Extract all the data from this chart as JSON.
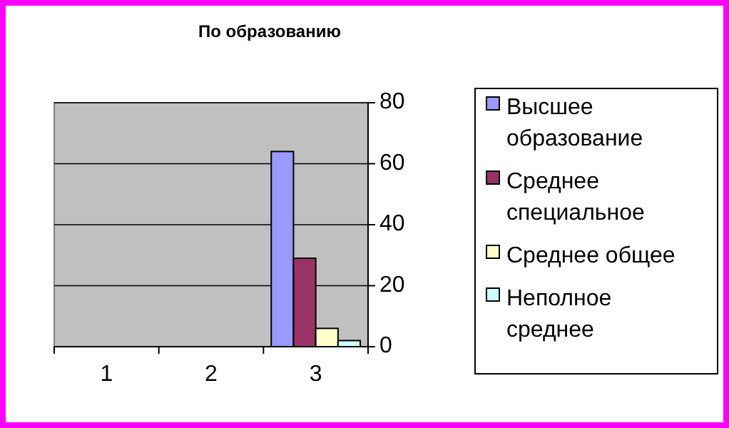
{
  "chart_data": {
    "type": "bar",
    "title": "По образованию",
    "categories": [
      "1",
      "2",
      "3"
    ],
    "series": [
      {
        "name": "Высшее образование",
        "color": "#9999ff",
        "values": [
          null,
          null,
          64
        ]
      },
      {
        "name": "Среднее специальное",
        "color": "#993366",
        "values": [
          null,
          null,
          29
        ]
      },
      {
        "name": "Среднее общее",
        "color": "#ffffcc",
        "values": [
          null,
          null,
          6
        ]
      },
      {
        "name": "Неполное среднее",
        "color": "#ccffff",
        "values": [
          null,
          null,
          2
        ]
      }
    ],
    "ylim": [
      0,
      80
    ],
    "yticks": [
      0,
      20,
      40,
      60,
      80
    ],
    "grid": "y",
    "legend": "right"
  }
}
